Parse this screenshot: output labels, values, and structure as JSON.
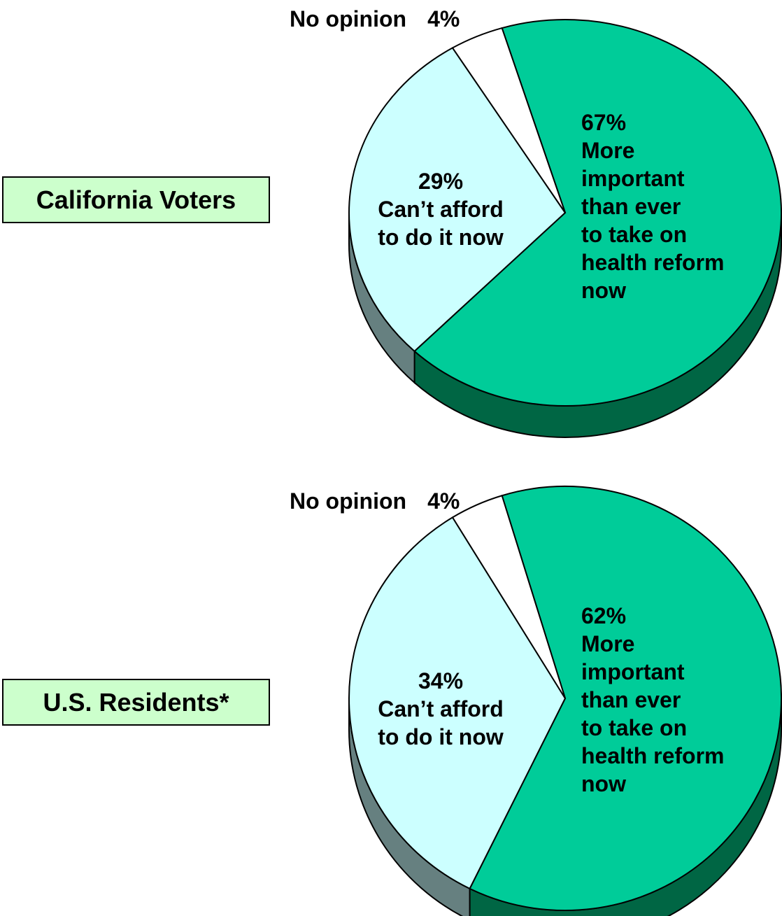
{
  "colors": {
    "more_important": "#00cc99",
    "more_important_side": "#006644",
    "cant_afford": "#ccffff",
    "cant_afford_side": "#668080",
    "no_opinion": "#ffffff",
    "label_box": "#ccffcc"
  },
  "chart_data": [
    {
      "type": "pie",
      "group_label": "California Voters",
      "slices": [
        {
          "key": "more_important",
          "value": 67,
          "pct_text": "67%",
          "label_lines": [
            "More",
            "important",
            "than ever",
            "to take on",
            "health reform",
            "now"
          ]
        },
        {
          "key": "cant_afford",
          "value": 29,
          "pct_text": "29%",
          "label_lines": [
            "Can’t afford",
            "to do it now"
          ]
        },
        {
          "key": "no_opinion",
          "value": 4,
          "pct_text": "4%",
          "label": "No opinion"
        }
      ]
    },
    {
      "type": "pie",
      "group_label": "U.S. Residents*",
      "slices": [
        {
          "key": "more_important",
          "value": 62,
          "pct_text": "62%",
          "label_lines": [
            "More",
            "important",
            "than ever",
            "to take on",
            "health reform",
            "now"
          ]
        },
        {
          "key": "cant_afford",
          "value": 34,
          "pct_text": "34%",
          "label_lines": [
            "Can’t afford",
            "to do it now"
          ]
        },
        {
          "key": "no_opinion",
          "value": 4,
          "pct_text": "4%",
          "label": "No opinion"
        }
      ]
    }
  ]
}
